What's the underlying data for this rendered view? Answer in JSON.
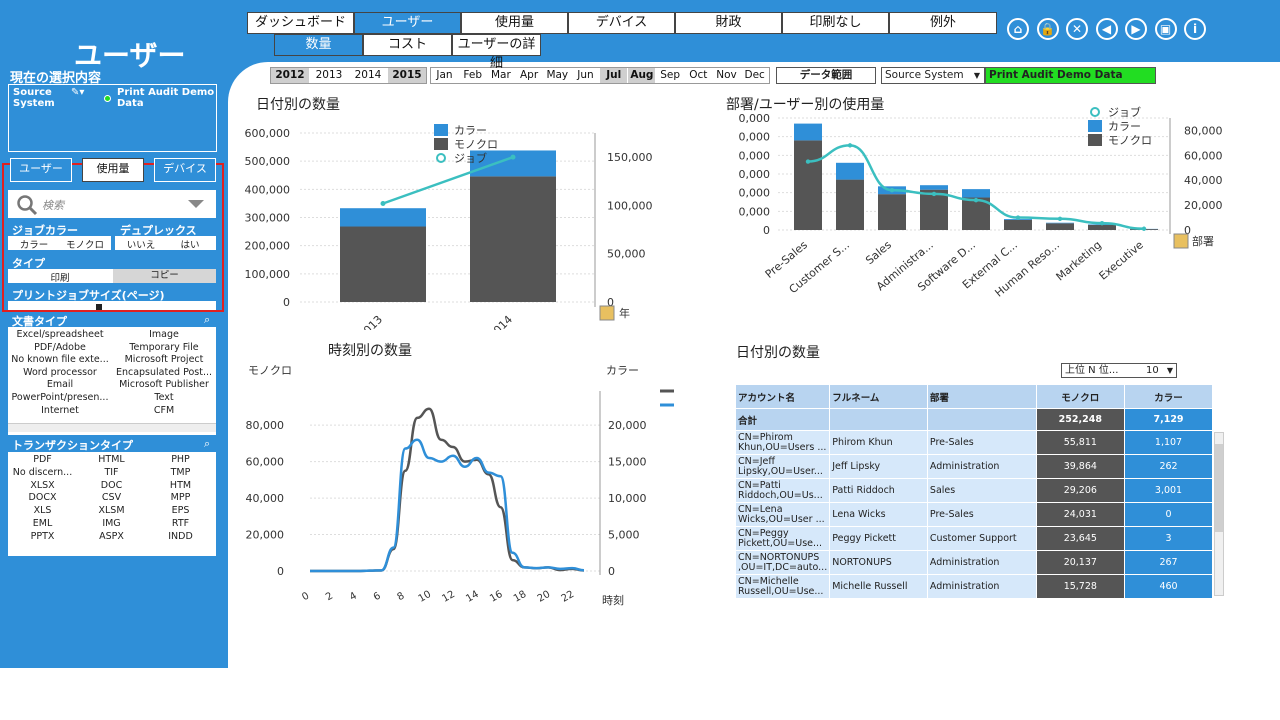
{
  "main_tabs": [
    "ダッシュボード",
    "ユーザー",
    "使用量",
    "デバイス",
    "財政",
    "印刷なし",
    "例外"
  ],
  "active_main_tab": 1,
  "sub_tabs": [
    "数量",
    "コスト",
    "ユーザーの詳細"
  ],
  "active_sub_tab": 0,
  "toolbar_icons": [
    "home-icon",
    "lock-icon",
    "close-icon",
    "back-icon",
    "forward-icon",
    "save-icon",
    "info-icon"
  ],
  "toolbar_glyphs": [
    "⌂",
    "🔒",
    "✕",
    "◀",
    "▶",
    "▣",
    "i"
  ],
  "sidebar": {
    "title": "ユーザー",
    "current_selection_label": "現在の選択内容",
    "selection_field": "Source System",
    "selection_value": "Print Audit Demo Data",
    "filter_tabs": [
      "ユーザー",
      "使用量",
      "デバイス"
    ],
    "active_filter_tab": 1,
    "search_placeholder": "検索",
    "job_color_label": "ジョブカラー",
    "job_color_options": [
      "カラー",
      "モノクロ"
    ],
    "duplex_label": "デュプレックス",
    "duplex_options": [
      "いいえ",
      "はい"
    ],
    "type_label": "タイプ",
    "type_options": [
      "印刷",
      "コピー"
    ],
    "job_size_label": "プリントジョブサイズ(ページ)",
    "doc_type_label": "文書タイプ",
    "doc_types": [
      "Excel/spreadsheet",
      "Image",
      "PDF/Adobe",
      "Temporary File",
      "No known file exte...",
      "Microsoft Project",
      "Word processor",
      "Encapsulated Post...",
      "Email",
      "Microsoft Publisher",
      "PowerPoint/presen...",
      "Text",
      "Internet",
      "CFM"
    ],
    "transaction_label": "トランザクションタイプ",
    "transaction_types": [
      "PDF",
      "HTML",
      "PHP",
      "No discern...",
      "TIF",
      "TMP",
      "XLSX",
      "DOC",
      "HTM",
      "DOCX",
      "CSV",
      "MPP",
      "XLS",
      "XLSM",
      "EPS",
      "EML",
      "IMG",
      "RTF",
      "PPTX",
      "ASPX",
      "INDD"
    ]
  },
  "years": [
    "2012",
    "2013",
    "2014",
    "2015"
  ],
  "selected_years": [
    "2012",
    "2015"
  ],
  "months": [
    "Jan",
    "Feb",
    "Mar",
    "Apr",
    "May",
    "Jun",
    "Jul",
    "Aug",
    "Sep",
    "Oct",
    "Nov",
    "Dec"
  ],
  "selected_months": [
    "Jul",
    "Aug"
  ],
  "data_range_button": "データ範囲",
  "source_system_label": "Source System",
  "source_system_value": "Print Audit Demo Data",
  "colors": {
    "color": "#2f8fd8",
    "mono": "#555555",
    "job": "#3bbfc0",
    "green": "#22dd22"
  },
  "chart_data": [
    {
      "type": "bar",
      "title": "日付別の数量",
      "categories": [
        "2013",
        "2014"
      ],
      "series": [
        {
          "name": "モノクロ",
          "values": [
            268000,
            446000
          ]
        },
        {
          "name": "カラー",
          "values": [
            65000,
            92000
          ]
        },
        {
          "name": "ジョブ",
          "values": [
            102000,
            150000
          ],
          "axis": "right"
        }
      ],
      "y_ticks": [
        "600,000",
        "500,000",
        "400,000",
        "300,000",
        "200,000",
        "100,000",
        "0"
      ],
      "y2_ticks": [
        "150,000",
        "100,000",
        "50,000",
        "0"
      ],
      "ylim": [
        0,
        600000
      ],
      "y2lim": [
        0,
        175000
      ],
      "x_label": "年",
      "legend": [
        "カラー",
        "モノクロ",
        "ジョブ"
      ]
    },
    {
      "type": "bar",
      "title": "部署/ユーザー別の使用量",
      "categories": [
        "Pre-Sales",
        "Customer S...",
        "Sales",
        "Administra...",
        "Software D...",
        "External C...",
        "Human Reso...",
        "Marketing",
        "Executive"
      ],
      "series": [
        {
          "name": "モノクロ",
          "values": [
            80000,
            45000,
            32000,
            36000,
            29000,
            9000,
            6000,
            4500,
            800
          ]
        },
        {
          "name": "カラー",
          "values": [
            15000,
            15000,
            7000,
            4000,
            7500,
            800,
            500,
            500,
            200
          ]
        },
        {
          "name": "ジョブ",
          "values": [
            55000,
            68000,
            32000,
            29000,
            24000,
            10000,
            9000,
            5500,
            1000
          ],
          "axis": "right"
        }
      ],
      "y_ticks": [
        "0,000",
        "0,000",
        "0,000",
        "0,000",
        "0,000",
        "0,000",
        "0"
      ],
      "y2_ticks": [
        "80,000",
        "60,000",
        "40,000",
        "20,000",
        "0"
      ],
      "x_label": "部署",
      "legend": [
        "ジョブ",
        "カラー",
        "モノクロ"
      ]
    },
    {
      "type": "line",
      "title": "時刻別の数量",
      "x": [
        0,
        1,
        2,
        3,
        4,
        5,
        6,
        7,
        8,
        9,
        10,
        11,
        12,
        13,
        14,
        15,
        16,
        17,
        18,
        19,
        20,
        21,
        22,
        23
      ],
      "series": [
        {
          "name": "モノクロ",
          "values": [
            0,
            0,
            0,
            0,
            0,
            200,
            300,
            12000,
            55000,
            84000,
            89000,
            72000,
            68000,
            60000,
            61000,
            53000,
            35000,
            6000,
            2000,
            1500,
            2000,
            500,
            1200,
            300
          ]
        },
        {
          "name": "カラー",
          "values": [
            0,
            0,
            0,
            0,
            0,
            50,
            80,
            3200,
            16800,
            18000,
            15500,
            15000,
            15800,
            14300,
            15500,
            13500,
            13000,
            2500,
            500,
            400,
            500,
            300,
            400,
            100
          ],
          "axis": "right"
        }
      ],
      "x_ticks": [
        "0",
        "2",
        "4",
        "6",
        "8",
        "10",
        "12",
        "14",
        "16",
        "18",
        "20",
        "22"
      ],
      "y_ticks": [
        "80,000",
        "60,000",
        "40,000",
        "20,000",
        "0"
      ],
      "y2_ticks": [
        "20,000",
        "15,000",
        "10,000",
        "5,000",
        "0"
      ],
      "ylabel": "モノクロ",
      "y2label": "カラー",
      "x_label": "時刻",
      "legend": [
        "モノクロ",
        "カラー"
      ]
    },
    {
      "type": "table",
      "title": "日付別の数量",
      "top_n_label": "上位 N 位...",
      "top_n_value": "10",
      "columns": [
        "アカウント名",
        "フルネーム",
        "部署",
        "モノクロ",
        "カラー"
      ],
      "total_row": [
        "合計",
        "",
        "",
        "252,248",
        "7,129"
      ],
      "rows": [
        [
          "CN=Phirom Khun,OU=Users ...",
          "Phirom Khun",
          "Pre-Sales",
          "55,811",
          "1,107"
        ],
        [
          "CN=Jeff Lipsky,OU=User...",
          "Jeff Lipsky",
          "Administration",
          "39,864",
          "262"
        ],
        [
          "CN=Patti Riddoch,OU=Us...",
          "Patti Riddoch",
          "Sales",
          "29,206",
          "3,001"
        ],
        [
          "CN=Lena Wicks,OU=User ...",
          "Lena Wicks",
          "Pre-Sales",
          "24,031",
          "0"
        ],
        [
          "CN=Peggy Pickett,OU=Use...",
          "Peggy Pickett",
          "Customer Support",
          "23,645",
          "3"
        ],
        [
          "CN=NORTONUPS ,OU=IT,DC=auto...",
          "NORTONUPS",
          "Administration",
          "20,137",
          "267"
        ],
        [
          "CN=Michelle Russell,OU=Use...",
          "Michelle Russell",
          "Administration",
          "15,728",
          "460"
        ]
      ]
    }
  ]
}
